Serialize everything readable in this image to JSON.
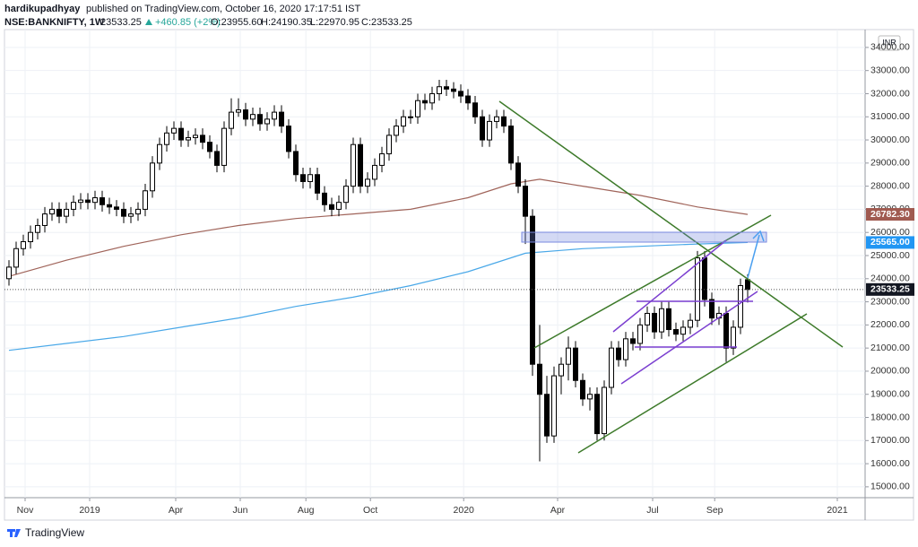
{
  "header": {
    "author": "hardikupadhyay",
    "published": "published on TradingView.com, October 16, 2020 17:17:51 IST",
    "symbol": "NSE:BANKNIFTY, 1W",
    "price": "23533.25",
    "change": "+460.85 (+2%)",
    "open": "O:23955.60",
    "high": "H:24190.35",
    "low": "L:22970.95",
    "close": "C:23533.25",
    "currency": "INR"
  },
  "footer": {
    "brand": "TradingView"
  },
  "chart_data": {
    "type": "candlestick",
    "up_color": "#ffffff",
    "down_color": "#000000",
    "outline_color": "#000000",
    "xlim": [
      -0.625,
      119.375
    ],
    "ylim": [
      14530,
      34500
    ],
    "grid": true,
    "xticks": [
      {
        "value": 2.25,
        "label": "Nov"
      },
      {
        "value": 11.25,
        "label": "2019"
      },
      {
        "value": 23.25,
        "label": "Apr"
      },
      {
        "value": 32.25,
        "label": "Jun"
      },
      {
        "value": 41.4,
        "label": "Aug"
      },
      {
        "value": 50.4,
        "label": "Oct"
      },
      {
        "value": 63.4,
        "label": "2020"
      },
      {
        "value": 76.5,
        "label": "Apr"
      },
      {
        "value": 89.75,
        "label": "Jul"
      },
      {
        "value": 98.4,
        "label": "Sep"
      },
      {
        "value": 115.5,
        "label": "2021"
      }
    ],
    "yticks": [
      {
        "value": 15000,
        "label": "15000.00"
      },
      {
        "value": 16000,
        "label": "16000.00"
      },
      {
        "value": 17000,
        "label": "17000.00"
      },
      {
        "value": 18000,
        "label": "18000.00"
      },
      {
        "value": 19000,
        "label": "19000.00"
      },
      {
        "value": 20000,
        "label": "20000.00"
      },
      {
        "value": 21000,
        "label": "21000.00"
      },
      {
        "value": 22000,
        "label": "22000.00"
      },
      {
        "value": 23000,
        "label": "23000.00"
      },
      {
        "value": 24000,
        "label": "24000.00"
      },
      {
        "value": 25000,
        "label": "25000.00"
      },
      {
        "value": 26000,
        "label": "26000.00"
      },
      {
        "value": 27000,
        "label": "27000.00"
      },
      {
        "value": 28000,
        "label": "28000.00"
      },
      {
        "value": 29000,
        "label": "29000.00"
      },
      {
        "value": 30000,
        "label": "30000.00"
      },
      {
        "value": 31000,
        "label": "31000.00"
      },
      {
        "value": 32000,
        "label": "32000.00"
      },
      {
        "value": 33000,
        "label": "33000.00"
      },
      {
        "value": 34000,
        "label": "34000.00"
      }
    ],
    "price_labels": [
      {
        "value": 26782.3,
        "label": "26782.30",
        "color": "#a05a50"
      },
      {
        "value": 25565,
        "label": "25565.00",
        "color": "#2196f3"
      },
      {
        "value": 23533.25,
        "label": "23533.25",
        "color": "#131722"
      }
    ],
    "lines": [
      {
        "color": "#a0645a",
        "x": [
          0,
          8,
          16,
          24,
          32,
          40,
          48,
          56,
          64,
          70,
          74,
          80,
          88,
          96,
          103
        ],
        "values": [
          24100,
          24800,
          25400,
          25900,
          26300,
          26600,
          26800,
          27000,
          27500,
          28100,
          28300,
          28000,
          27600,
          27100,
          26780
        ]
      },
      {
        "color": "#49a8e8",
        "x": [
          0,
          8,
          16,
          24,
          32,
          40,
          48,
          56,
          64,
          72,
          80,
          88,
          96,
          103
        ],
        "values": [
          20900,
          21200,
          21500,
          21900,
          22300,
          22800,
          23200,
          23700,
          24300,
          25100,
          25300,
          25400,
          25500,
          25565
        ]
      }
    ],
    "candles": [
      [
        24000,
        24800,
        23700,
        24500
      ],
      [
        24500,
        25600,
        24200,
        25300
      ],
      [
        25300,
        25900,
        25000,
        25600
      ],
      [
        25600,
        26300,
        25300,
        26000
      ],
      [
        26000,
        26600,
        25700,
        26300
      ],
      [
        26300,
        27100,
        26000,
        26800
      ],
      [
        26800,
        27300,
        26500,
        27000
      ],
      [
        27000,
        27300,
        26400,
        26700
      ],
      [
        26700,
        27300,
        26400,
        27000
      ],
      [
        27000,
        27600,
        26700,
        27300
      ],
      [
        27300,
        27700,
        27000,
        27400
      ],
      [
        27400,
        27700,
        27000,
        27300
      ],
      [
        27300,
        27800,
        27000,
        27500
      ],
      [
        27500,
        27800,
        26900,
        27200
      ],
      [
        27200,
        27500,
        26800,
        27100
      ],
      [
        27100,
        27400,
        26700,
        27000
      ],
      [
        27000,
        27300,
        26400,
        26700
      ],
      [
        26700,
        27100,
        26400,
        26800
      ],
      [
        26800,
        27300,
        26500,
        27000
      ],
      [
        27000,
        28100,
        26700,
        27800
      ],
      [
        27800,
        29300,
        27500,
        29000
      ],
      [
        29000,
        30100,
        28700,
        29800
      ],
      [
        29800,
        30600,
        29500,
        30300
      ],
      [
        30300,
        30800,
        30000,
        30500
      ],
      [
        30500,
        30800,
        29700,
        30000
      ],
      [
        30000,
        30400,
        29700,
        30100
      ],
      [
        30100,
        30500,
        29800,
        30200
      ],
      [
        30200,
        30500,
        29600,
        29900
      ],
      [
        29900,
        30200,
        29200,
        29500
      ],
      [
        29500,
        29800,
        28600,
        28900
      ],
      [
        28900,
        30800,
        28600,
        30500
      ],
      [
        30500,
        31800,
        30200,
        31200
      ],
      [
        31200,
        31800,
        31000,
        31300
      ],
      [
        31300,
        31600,
        30600,
        30900
      ],
      [
        30900,
        31400,
        30600,
        31100
      ],
      [
        31100,
        31400,
        30400,
        30700
      ],
      [
        30700,
        31200,
        30400,
        30900
      ],
      [
        30900,
        31500,
        30600,
        31200
      ],
      [
        31200,
        31500,
        30300,
        30600
      ],
      [
        30600,
        30900,
        29200,
        29500
      ],
      [
        29500,
        29800,
        28200,
        28500
      ],
      [
        28500,
        28800,
        27900,
        28200
      ],
      [
        28200,
        28800,
        27900,
        28500
      ],
      [
        28500,
        28800,
        27400,
        27700
      ],
      [
        27700,
        28000,
        26900,
        27200
      ],
      [
        27200,
        27500,
        26700,
        27000
      ],
      [
        27000,
        27600,
        26700,
        27300
      ],
      [
        27300,
        28300,
        27000,
        28000
      ],
      [
        28000,
        30100,
        27700,
        29800
      ],
      [
        29800,
        30100,
        27700,
        28000
      ],
      [
        28000,
        28600,
        27700,
        28300
      ],
      [
        28300,
        29200,
        28000,
        28900
      ],
      [
        28900,
        29700,
        28600,
        29400
      ],
      [
        29400,
        30500,
        29100,
        30200
      ],
      [
        30200,
        30900,
        29900,
        30600
      ],
      [
        30600,
        31300,
        30300,
        31000
      ],
      [
        31000,
        31300,
        30700,
        31000
      ],
      [
        31000,
        32000,
        30700,
        31700
      ],
      [
        31700,
        32000,
        31300,
        31600
      ],
      [
        31600,
        32300,
        31300,
        32000
      ],
      [
        32000,
        32600,
        31700,
        32300
      ],
      [
        32300,
        32600,
        31900,
        32200
      ],
      [
        32200,
        32500,
        31800,
        32100
      ],
      [
        32100,
        32400,
        31600,
        31900
      ],
      [
        31900,
        32200,
        31300,
        31600
      ],
      [
        31600,
        31900,
        30700,
        31000
      ],
      [
        31000,
        31300,
        29700,
        30000
      ],
      [
        30000,
        31100,
        29700,
        30800
      ],
      [
        30800,
        31300,
        30500,
        31000
      ],
      [
        31000,
        31300,
        30300,
        30600
      ],
      [
        30600,
        30900,
        28700,
        29000
      ],
      [
        29000,
        29300,
        27700,
        28000
      ],
      [
        28000,
        28300,
        25500,
        26700
      ],
      [
        26700,
        27000,
        19800,
        20300
      ],
      [
        20300,
        22000,
        16100,
        19000
      ],
      [
        19000,
        19800,
        16900,
        17200
      ],
      [
        17200,
        20200,
        16900,
        19800
      ],
      [
        19800,
        20600,
        19000,
        20300
      ],
      [
        20300,
        21500,
        19600,
        21000
      ],
      [
        21000,
        21300,
        19300,
        19600
      ],
      [
        19600,
        19900,
        18500,
        18800
      ],
      [
        18800,
        19300,
        18300,
        19000
      ],
      [
        19000,
        19300,
        17000,
        17300
      ],
      [
        17300,
        19600,
        17000,
        19300
      ],
      [
        19300,
        21300,
        19000,
        21000
      ],
      [
        21000,
        21300,
        20200,
        20500
      ],
      [
        20500,
        21700,
        20200,
        21400
      ],
      [
        21400,
        21700,
        20900,
        21200
      ],
      [
        21200,
        22300,
        20900,
        22000
      ],
      [
        22000,
        22800,
        21700,
        22500
      ],
      [
        22500,
        22800,
        21400,
        21700
      ],
      [
        21700,
        23000,
        21400,
        22700
      ],
      [
        22700,
        23000,
        21500,
        21800
      ],
      [
        21800,
        22100,
        21300,
        21600
      ],
      [
        21600,
        22200,
        21300,
        21900
      ],
      [
        21900,
        22500,
        21600,
        22200
      ],
      [
        22200,
        25200,
        21900,
        24900
      ],
      [
        24900,
        25200,
        22800,
        23100
      ],
      [
        23100,
        23400,
        22000,
        22300
      ],
      [
        22300,
        22800,
        22000,
        22500
      ],
      [
        22500,
        22800,
        20400,
        21000
      ],
      [
        21000,
        22200,
        20700,
        21900
      ],
      [
        21900,
        24000,
        21600,
        23700
      ],
      [
        23955.6,
        24190.35,
        22970.95,
        23533.25
      ]
    ]
  }
}
